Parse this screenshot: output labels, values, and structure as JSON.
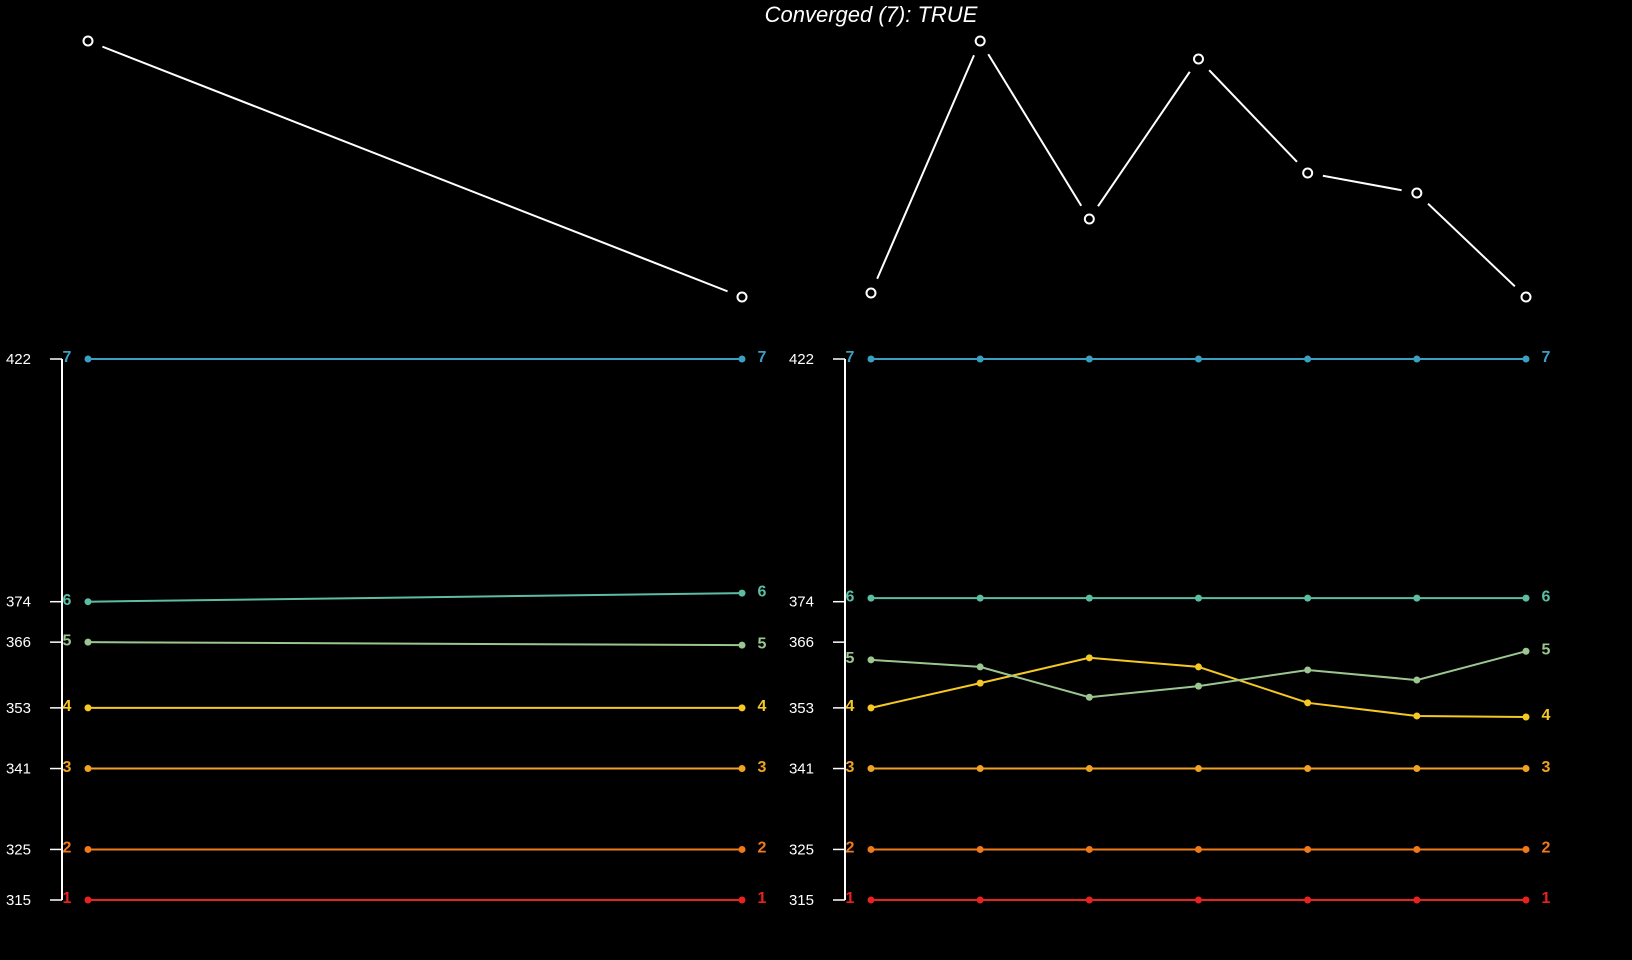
{
  "chart_data": [
    {
      "type": "line",
      "x": [
        1,
        2
      ],
      "xlim": [
        1,
        2
      ],
      "ylim": [
        0,
        256
      ],
      "values": [
        256,
        0
      ],
      "color": "#ffffff",
      "marker": "open"
    },
    {
      "type": "line",
      "title": "Converged (7): TRUE",
      "x": [
        1,
        2,
        3,
        4,
        5,
        6,
        7
      ],
      "xlim": [
        1,
        7
      ],
      "ylim": [
        0,
        256
      ],
      "values": [
        4,
        256,
        78,
        238,
        124,
        104,
        0
      ],
      "color": "#ffffff",
      "marker": "open"
    },
    {
      "type": "line",
      "x": [
        1,
        2
      ],
      "xlim": [
        1,
        2
      ],
      "ylim": [
        315,
        422
      ],
      "yticks": [
        315,
        325,
        341,
        353,
        366,
        374,
        422
      ],
      "marker": "filled",
      "series": [
        {
          "name": "1",
          "color": "#e8231f",
          "values": [
            315,
            315
          ]
        },
        {
          "name": "2",
          "color": "#f07a1a",
          "values": [
            325,
            325
          ]
        },
        {
          "name": "3",
          "color": "#f0a224",
          "values": [
            341,
            341
          ]
        },
        {
          "name": "4",
          "color": "#f5c823",
          "values": [
            353,
            353
          ]
        },
        {
          "name": "5",
          "color": "#9cc690",
          "values": [
            366,
            365.4
          ]
        },
        {
          "name": "6",
          "color": "#5cbda2",
          "values": [
            374,
            375.7
          ]
        },
        {
          "name": "7",
          "color": "#3b9fc2",
          "values": [
            422,
            422
          ]
        }
      ]
    },
    {
      "type": "line",
      "x": [
        1,
        2,
        3,
        4,
        5,
        6,
        7
      ],
      "xlim": [
        1,
        7
      ],
      "ylim": [
        315,
        422
      ],
      "yticks": [
        315,
        325,
        341,
        353,
        366,
        374,
        422
      ],
      "marker": "filled",
      "series": [
        {
          "name": "1",
          "color": "#e8231f",
          "values": [
            315,
            315,
            315,
            315,
            315,
            315,
            315
          ]
        },
        {
          "name": "2",
          "color": "#f07a1a",
          "values": [
            325,
            325,
            325,
            325,
            325,
            325,
            325
          ]
        },
        {
          "name": "3",
          "color": "#f0a224",
          "values": [
            341,
            341,
            341,
            341,
            341,
            341,
            341
          ]
        },
        {
          "name": "4",
          "color": "#f5c823",
          "values": [
            353,
            357.9,
            362.9,
            361.1,
            354,
            351.4,
            351.2
          ]
        },
        {
          "name": "5",
          "color": "#9cc690",
          "values": [
            362.5,
            361.1,
            355.1,
            357.3,
            360.5,
            358.5,
            364.2
          ]
        },
        {
          "name": "6",
          "color": "#5cbda2",
          "values": [
            374.7,
            374.7,
            374.7,
            374.7,
            374.7,
            374.7,
            374.7
          ]
        },
        {
          "name": "7",
          "color": "#3b9fc2",
          "values": [
            422,
            422,
            422,
            422,
            422,
            422,
            422
          ]
        }
      ]
    }
  ]
}
